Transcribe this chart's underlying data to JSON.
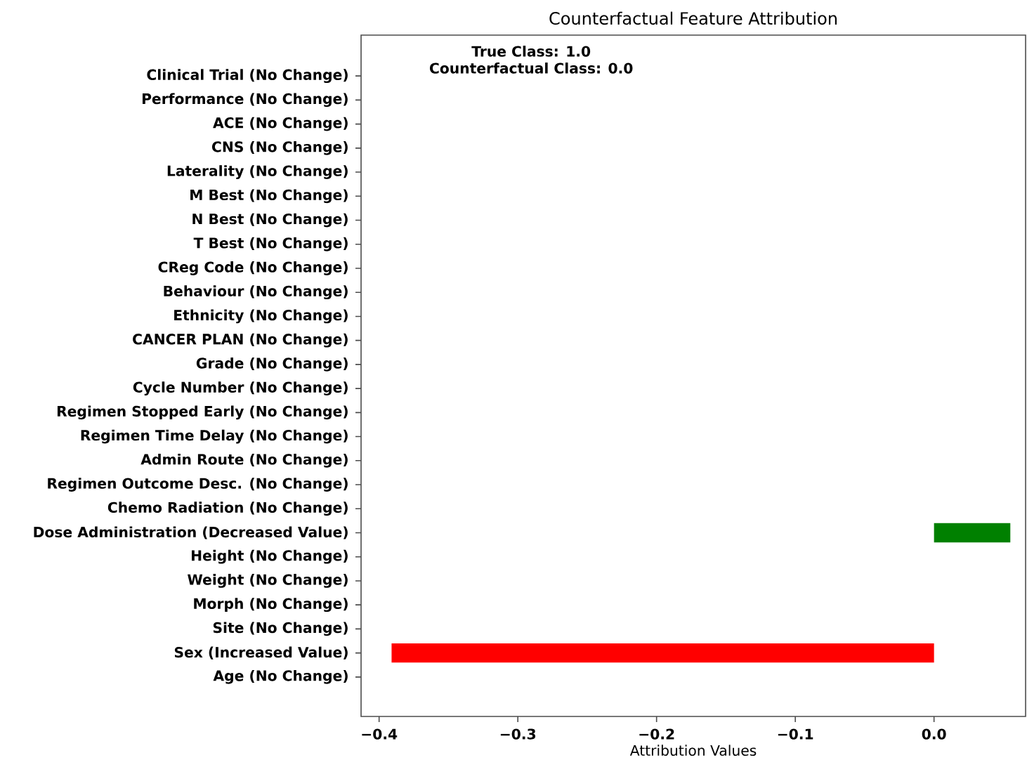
{
  "chart_data": {
    "type": "bar",
    "orientation": "horizontal",
    "title": "Counterfactual Feature Attribution",
    "xlabel": "Attribution Values",
    "categories": [
      "Clinical Trial (No Change)",
      "Performance (No Change)",
      "ACE (No Change)",
      "CNS (No Change)",
      "Laterality (No Change)",
      "M Best (No Change)",
      "N Best (No Change)",
      "T Best (No Change)",
      "CReg Code (No Change)",
      "Behaviour (No Change)",
      "Ethnicity (No Change)",
      "CANCER PLAN (No Change)",
      "Grade (No Change)",
      "Cycle Number (No Change)",
      "Regimen Stopped Early (No Change)",
      "Regimen Time Delay (No Change)",
      "Admin Route (No Change)",
      "Regimen Outcome Desc. (No Change)",
      "Chemo Radiation (No Change)",
      "Dose Administration (Decreased Value)",
      "Height (No Change)",
      "Weight (No Change)",
      "Morph (No Change)",
      "Site (No Change)",
      "Sex (Increased Value)",
      "Age (No Change)"
    ],
    "values": [
      0,
      0,
      0,
      0,
      0,
      0,
      0,
      0,
      0,
      0,
      0,
      0,
      0,
      0,
      0,
      0,
      0,
      0,
      0,
      0.055,
      0,
      0,
      0,
      0,
      -0.391,
      0
    ],
    "colors": [
      "#808080",
      "#808080",
      "#808080",
      "#808080",
      "#808080",
      "#808080",
      "#808080",
      "#808080",
      "#808080",
      "#808080",
      "#808080",
      "#808080",
      "#808080",
      "#808080",
      "#808080",
      "#808080",
      "#808080",
      "#808080",
      "#808080",
      "#008000",
      "#808080",
      "#808080",
      "#808080",
      "#808080",
      "#ff0000",
      "#808080"
    ],
    "xlim": [
      -0.413,
      0.066
    ],
    "xticks": [
      {
        "value": -0.4,
        "label": "−0.4"
      },
      {
        "value": -0.3,
        "label": "−0.3"
      },
      {
        "value": -0.2,
        "label": "−0.2"
      },
      {
        "value": -0.1,
        "label": "−0.1"
      },
      {
        "value": 0.0,
        "label": "0.0"
      }
    ],
    "annotations": [
      "True Class: 1.0",
      "Counterfactual Class: 0.0"
    ]
  }
}
